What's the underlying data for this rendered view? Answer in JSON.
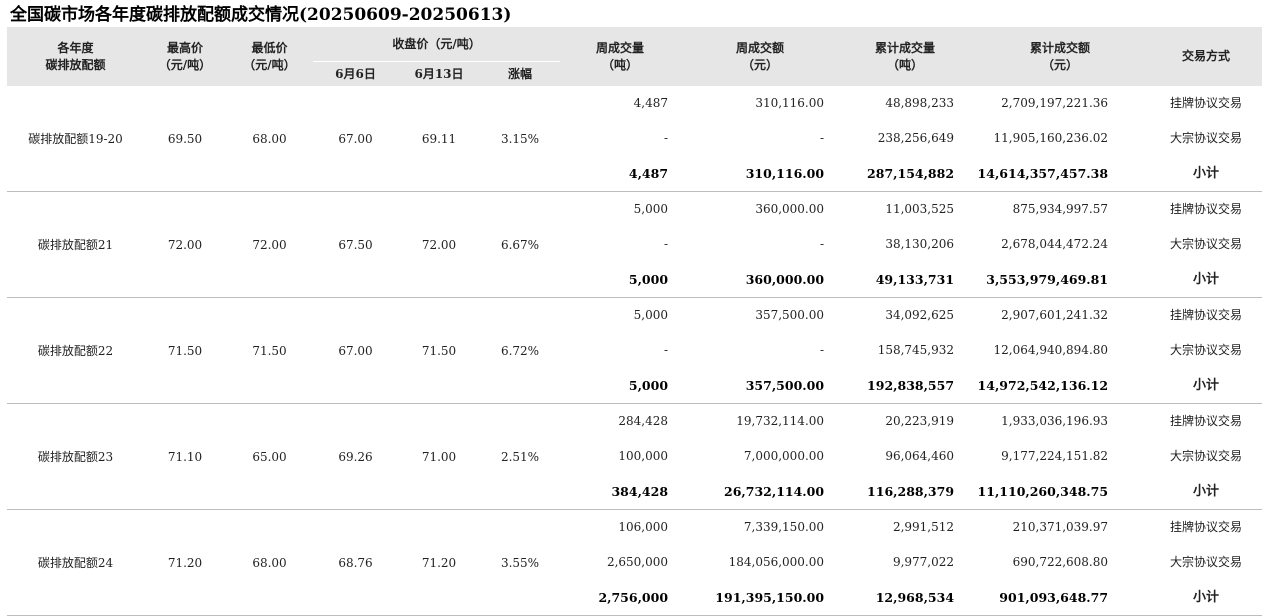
{
  "title": "全国碳市场各年度碳排放配额成交情况(20250609-20250613)",
  "headers": {
    "vintage": [
      "各年度",
      "碳排放配额"
    ],
    "high": [
      "最高价",
      "（元/吨）"
    ],
    "low": [
      "最低价",
      "（元/吨）"
    ],
    "close": "收盘价（元/吨）",
    "close_sub": [
      "6月6日",
      "6月13日",
      "涨幅"
    ],
    "week_volume": [
      "周成交量",
      "（吨）"
    ],
    "week_amount": [
      "周成交额",
      "（元）"
    ],
    "cum_volume": [
      "累计成交量",
      "（吨）"
    ],
    "cum_amount": [
      "累计成交额",
      "（元）"
    ],
    "method": "交易方式"
  },
  "groups": [
    {
      "name": "碳排放配额19-20",
      "high": "69.50",
      "low": "68.00",
      "close_prev": "67.00",
      "close_curr": "69.11",
      "change": "3.15%",
      "rows": [
        {
          "week_volume": "4,487",
          "week_amount": "310,116.00",
          "cum_volume": "48,898,233",
          "cum_amount": "2,709,197,221.36",
          "method": "挂牌协议交易"
        },
        {
          "week_volume": "-",
          "week_amount": "-",
          "cum_volume": "238,256,649",
          "cum_amount": "11,905,160,236.02",
          "method": "大宗协议交易"
        },
        {
          "week_volume": "4,487",
          "week_amount": "310,116.00",
          "cum_volume": "287,154,882",
          "cum_amount": "14,614,357,457.38",
          "method": "小计"
        }
      ]
    },
    {
      "name": "碳排放配额21",
      "high": "72.00",
      "low": "72.00",
      "close_prev": "67.50",
      "close_curr": "72.00",
      "change": "6.67%",
      "rows": [
        {
          "week_volume": "5,000",
          "week_amount": "360,000.00",
          "cum_volume": "11,003,525",
          "cum_amount": "875,934,997.57",
          "method": "挂牌协议交易"
        },
        {
          "week_volume": "-",
          "week_amount": "-",
          "cum_volume": "38,130,206",
          "cum_amount": "2,678,044,472.24",
          "method": "大宗协议交易"
        },
        {
          "week_volume": "5,000",
          "week_amount": "360,000.00",
          "cum_volume": "49,133,731",
          "cum_amount": "3,553,979,469.81",
          "method": "小计"
        }
      ]
    },
    {
      "name": "碳排放配额22",
      "high": "71.50",
      "low": "71.50",
      "close_prev": "67.00",
      "close_curr": "71.50",
      "change": "6.72%",
      "rows": [
        {
          "week_volume": "5,000",
          "week_amount": "357,500.00",
          "cum_volume": "34,092,625",
          "cum_amount": "2,907,601,241.32",
          "method": "挂牌协议交易"
        },
        {
          "week_volume": "-",
          "week_amount": "-",
          "cum_volume": "158,745,932",
          "cum_amount": "12,064,940,894.80",
          "method": "大宗协议交易"
        },
        {
          "week_volume": "5,000",
          "week_amount": "357,500.00",
          "cum_volume": "192,838,557",
          "cum_amount": "14,972,542,136.12",
          "method": "小计"
        }
      ]
    },
    {
      "name": "碳排放配额23",
      "high": "71.10",
      "low": "65.00",
      "close_prev": "69.26",
      "close_curr": "71.00",
      "change": "2.51%",
      "rows": [
        {
          "week_volume": "284,428",
          "week_amount": "19,732,114.00",
          "cum_volume": "20,223,919",
          "cum_amount": "1,933,036,196.93",
          "method": "挂牌协议交易"
        },
        {
          "week_volume": "100,000",
          "week_amount": "7,000,000.00",
          "cum_volume": "96,064,460",
          "cum_amount": "9,177,224,151.82",
          "method": "大宗协议交易"
        },
        {
          "week_volume": "384,428",
          "week_amount": "26,732,114.00",
          "cum_volume": "116,288,379",
          "cum_amount": "11,110,260,348.75",
          "method": "小计"
        }
      ]
    },
    {
      "name": "碳排放配额24",
      "high": "71.20",
      "low": "68.00",
      "close_prev": "68.76",
      "close_curr": "71.20",
      "change": "3.55%",
      "rows": [
        {
          "week_volume": "106,000",
          "week_amount": "7,339,150.00",
          "cum_volume": "2,991,512",
          "cum_amount": "210,371,039.97",
          "method": "挂牌协议交易"
        },
        {
          "week_volume": "2,650,000",
          "week_amount": "184,056,000.00",
          "cum_volume": "9,977,022",
          "cum_amount": "690,722,608.80",
          "method": "大宗协议交易"
        },
        {
          "week_volume": "2,756,000",
          "week_amount": "191,395,150.00",
          "cum_volume": "12,968,534",
          "cum_amount": "901,093,648.77",
          "method": "小计"
        }
      ]
    }
  ]
}
